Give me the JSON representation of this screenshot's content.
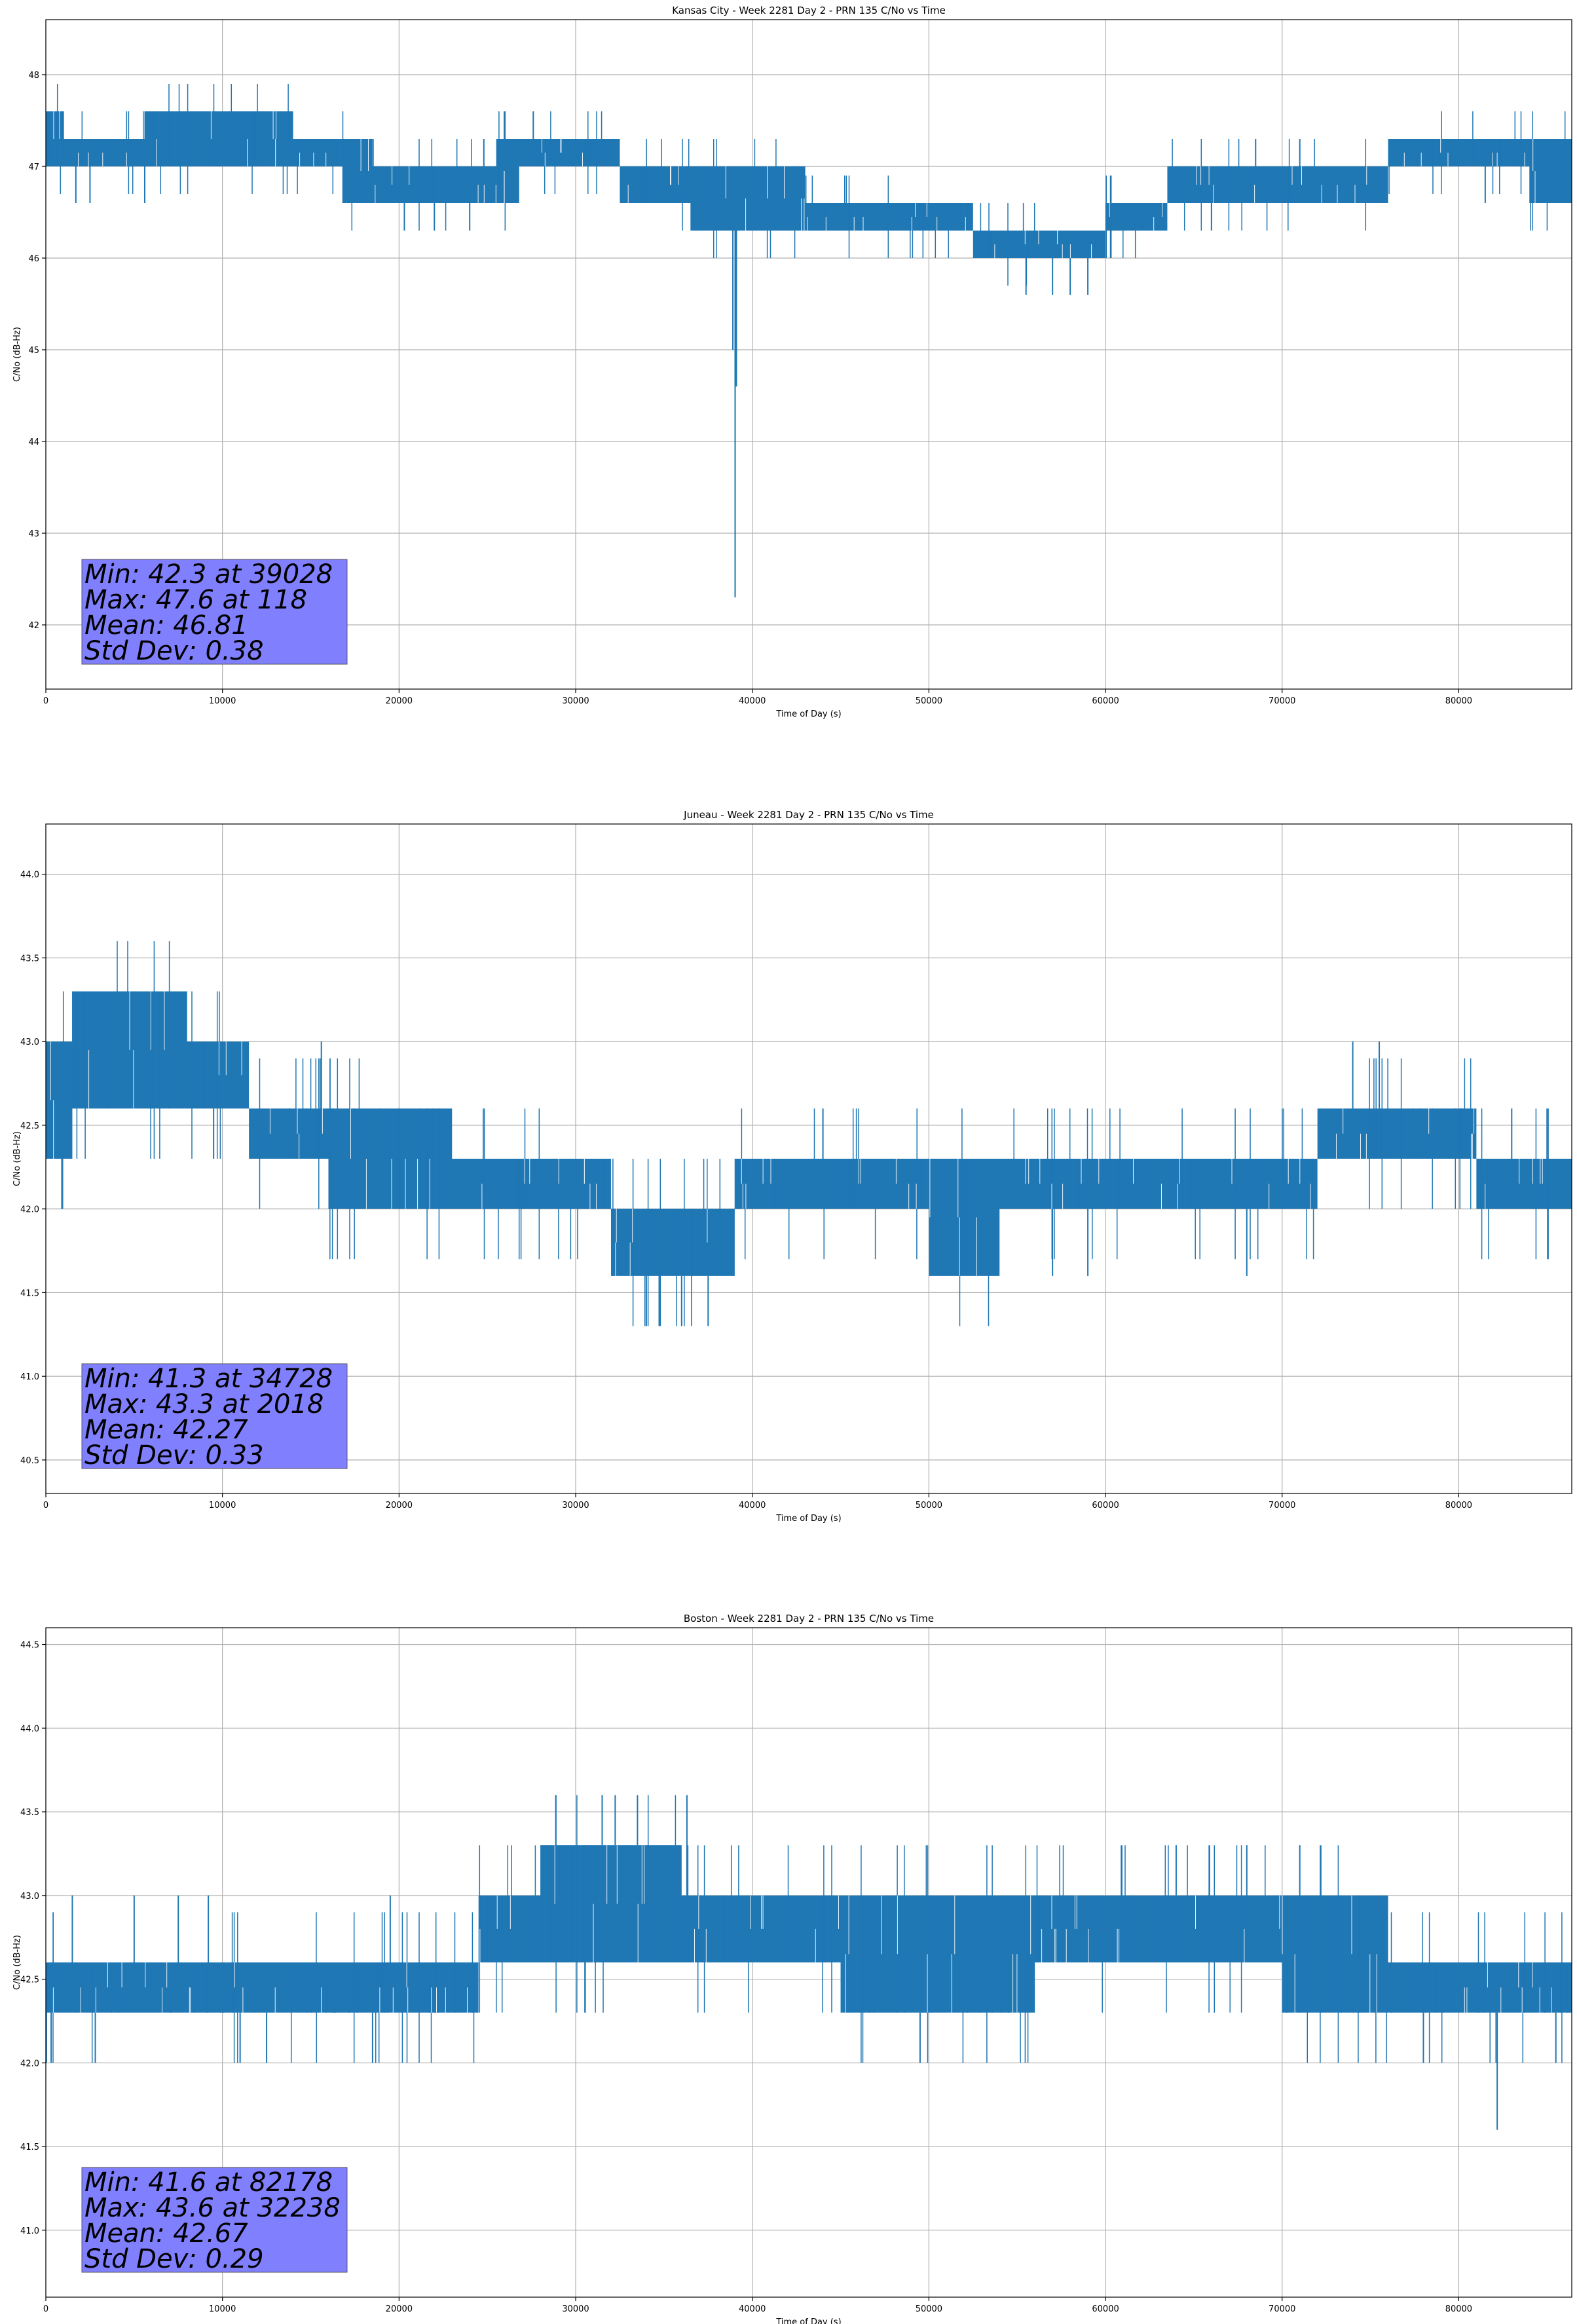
{
  "colors": {
    "series": "#1f77b4",
    "stats_box": "#8080ff",
    "grid": "#b0b0b0"
  },
  "chart_data": [
    {
      "type": "line",
      "title": "Kansas City - Week 2281 Day 2 - PRN 135 C/No vs Time",
      "xlabel": "Time of Day (s)",
      "ylabel": "C/No (dB-Hz)",
      "xlim": [
        0,
        86400
      ],
      "ylim": [
        41.3,
        48.6
      ],
      "xticks": [
        0,
        10000,
        20000,
        30000,
        40000,
        50000,
        60000,
        70000,
        80000
      ],
      "xtick_labels": [
        "0",
        "10000",
        "20000",
        "30000",
        "40000",
        "50000",
        "60000",
        "70000",
        "80000"
      ],
      "yticks": [
        42,
        43,
        44,
        45,
        46,
        47,
        48
      ],
      "ytick_labels": [
        "42",
        "43",
        "44",
        "45",
        "46",
        "47",
        "48"
      ],
      "grid": true,
      "stats": [
        "Min: 42.3 at 39028",
        "Max: 47.6 at 118",
        "Mean: 46.81",
        "Std Dev: 0.38"
      ],
      "series": [
        {
          "values_note": "C/No band approximated as low/high envelope segments",
          "segments": [
            {
              "x0": 0,
              "x1": 1000,
              "low": 47.0,
              "high": 47.6
            },
            {
              "x0": 1000,
              "x1": 5500,
              "low": 47.0,
              "high": 47.3
            },
            {
              "x0": 5500,
              "x1": 8000,
              "low": 47.0,
              "high": 47.6
            },
            {
              "x0": 8000,
              "x1": 14000,
              "low": 47.0,
              "high": 47.6
            },
            {
              "x0": 14000,
              "x1": 16800,
              "low": 47.0,
              "high": 47.3
            },
            {
              "x0": 16800,
              "x1": 18500,
              "low": 46.6,
              "high": 47.3
            },
            {
              "x0": 18500,
              "x1": 25500,
              "low": 46.6,
              "high": 47.0
            },
            {
              "x0": 25500,
              "x1": 26800,
              "low": 46.6,
              "high": 47.3
            },
            {
              "x0": 26800,
              "x1": 32500,
              "low": 47.0,
              "high": 47.3
            },
            {
              "x0": 32500,
              "x1": 36500,
              "low": 46.6,
              "high": 47.0
            },
            {
              "x0": 36500,
              "x1": 43000,
              "low": 46.3,
              "high": 47.0
            },
            {
              "x0": 43000,
              "x1": 52500,
              "low": 46.3,
              "high": 46.6
            },
            {
              "x0": 52500,
              "x1": 60000,
              "low": 46.0,
              "high": 46.3
            },
            {
              "x0": 60000,
              "x1": 63500,
              "low": 46.3,
              "high": 46.6
            },
            {
              "x0": 63500,
              "x1": 68000,
              "low": 46.6,
              "high": 47.0
            },
            {
              "x0": 68000,
              "x1": 76000,
              "low": 46.6,
              "high": 47.0
            },
            {
              "x0": 76000,
              "x1": 84000,
              "low": 47.0,
              "high": 47.3
            },
            {
              "x0": 84000,
              "x1": 86400,
              "low": 46.6,
              "high": 47.3
            }
          ],
          "spikes": [
            {
              "x": 118,
              "y": 47.6
            },
            {
              "x": 1700,
              "y": 46.6
            },
            {
              "x": 2500,
              "y": 46.6
            },
            {
              "x": 5600,
              "y": 46.6
            },
            {
              "x": 20300,
              "y": 46.3
            },
            {
              "x": 22000,
              "y": 46.3
            },
            {
              "x": 24000,
              "y": 46.3
            },
            {
              "x": 27600,
              "y": 47.6
            },
            {
              "x": 24800,
              "y": 47.3
            },
            {
              "x": 36800,
              "y": 46.3
            },
            {
              "x": 38900,
              "y": 45.0
            },
            {
              "x": 39028,
              "y": 42.3
            },
            {
              "x": 39100,
              "y": 44.6
            },
            {
              "x": 55500,
              "y": 45.6
            },
            {
              "x": 57000,
              "y": 45.6
            },
            {
              "x": 58000,
              "y": 45.6
            },
            {
              "x": 59000,
              "y": 45.6
            },
            {
              "x": 66000,
              "y": 46.3
            },
            {
              "x": 68500,
              "y": 47.3
            },
            {
              "x": 71000,
              "y": 47.3
            },
            {
              "x": 81500,
              "y": 46.6
            }
          ]
        }
      ]
    },
    {
      "type": "line",
      "title": "Juneau - Week 2281 Day 2 - PRN 135 C/No vs Time",
      "xlabel": "Time of Day (s)",
      "ylabel": "C/No (dB-Hz)",
      "xlim": [
        0,
        86400
      ],
      "ylim": [
        40.3,
        44.3
      ],
      "xticks": [
        0,
        10000,
        20000,
        30000,
        40000,
        50000,
        60000,
        70000,
        80000
      ],
      "xtick_labels": [
        "0",
        "10000",
        "20000",
        "30000",
        "40000",
        "50000",
        "60000",
        "70000",
        "80000"
      ],
      "yticks": [
        40.5,
        41.0,
        41.5,
        42.0,
        42.5,
        43.0,
        43.5,
        44.0
      ],
      "ytick_labels": [
        "40.5",
        "41.0",
        "41.5",
        "42.0",
        "42.5",
        "43.0",
        "43.5",
        "44.0"
      ],
      "grid": true,
      "stats": [
        "Min: 41.3 at 34728",
        "Max: 43.3 at 2018",
        "Mean: 42.27",
        "Std Dev: 0.33"
      ],
      "series": [
        {
          "values_note": "C/No band approximated as low/high envelope segments",
          "segments": [
            {
              "x0": 0,
              "x1": 1500,
              "low": 42.3,
              "high": 43.0
            },
            {
              "x0": 1500,
              "x1": 8000,
              "low": 42.6,
              "high": 43.3
            },
            {
              "x0": 8000,
              "x1": 11500,
              "low": 42.6,
              "high": 43.0
            },
            {
              "x0": 11500,
              "x1": 16000,
              "low": 42.3,
              "high": 42.6
            },
            {
              "x0": 16000,
              "x1": 23000,
              "low": 42.0,
              "high": 42.6
            },
            {
              "x0": 23000,
              "x1": 32000,
              "low": 42.0,
              "high": 42.3
            },
            {
              "x0": 32000,
              "x1": 39000,
              "low": 41.6,
              "high": 42.0
            },
            {
              "x0": 39000,
              "x1": 50000,
              "low": 42.0,
              "high": 42.3
            },
            {
              "x0": 50000,
              "x1": 54000,
              "low": 41.6,
              "high": 42.3
            },
            {
              "x0": 54000,
              "x1": 66000,
              "low": 42.0,
              "high": 42.3
            },
            {
              "x0": 66000,
              "x1": 72000,
              "low": 42.0,
              "high": 42.3
            },
            {
              "x0": 72000,
              "x1": 81000,
              "low": 42.3,
              "high": 42.6
            },
            {
              "x0": 81000,
              "x1": 86400,
              "low": 42.0,
              "high": 42.3
            }
          ],
          "spikes": [
            {
              "x": 300,
              "y": 42.3
            },
            {
              "x": 1200,
              "y": 42.3
            },
            {
              "x": 2018,
              "y": 43.3
            },
            {
              "x": 3500,
              "y": 43.3
            },
            {
              "x": 6000,
              "y": 43.3
            },
            {
              "x": 7500,
              "y": 43.3
            },
            {
              "x": 9500,
              "y": 42.3
            },
            {
              "x": 15600,
              "y": 43.0
            },
            {
              "x": 34000,
              "y": 41.3
            },
            {
              "x": 34728,
              "y": 41.3
            },
            {
              "x": 36000,
              "y": 41.3
            },
            {
              "x": 37500,
              "y": 41.3
            },
            {
              "x": 44000,
              "y": 42.6
            },
            {
              "x": 52000,
              "y": 41.6
            },
            {
              "x": 57000,
              "y": 41.6
            },
            {
              "x": 59000,
              "y": 41.6
            },
            {
              "x": 68000,
              "y": 41.6
            },
            {
              "x": 74000,
              "y": 43.0
            },
            {
              "x": 75500,
              "y": 43.0
            },
            {
              "x": 83000,
              "y": 42.6
            },
            {
              "x": 85000,
              "y": 42.6
            }
          ]
        }
      ]
    },
    {
      "type": "line",
      "title": "Boston - Week 2281 Day 2 - PRN 135 C/No vs Time",
      "xlabel": "Time of Day (s)",
      "ylabel": "C/No (dB-Hz)",
      "xlim": [
        0,
        86400
      ],
      "ylim": [
        40.6,
        44.6
      ],
      "xticks": [
        0,
        10000,
        20000,
        30000,
        40000,
        50000,
        60000,
        70000,
        80000
      ],
      "xtick_labels": [
        "0",
        "10000",
        "20000",
        "30000",
        "40000",
        "50000",
        "60000",
        "70000",
        "80000"
      ],
      "yticks": [
        41.0,
        41.5,
        42.0,
        42.5,
        43.0,
        43.5,
        44.0,
        44.5
      ],
      "ytick_labels": [
        "41.0",
        "41.5",
        "42.0",
        "42.5",
        "43.0",
        "43.5",
        "44.0",
        "44.5"
      ],
      "grid": true,
      "stats": [
        "Min: 41.6 at 82178",
        "Max: 43.6 at 32238",
        "Mean: 42.67",
        "Std Dev: 0.29"
      ],
      "series": [
        {
          "values_note": "C/No band approximated as low/high envelope segments",
          "segments": [
            {
              "x0": 0,
              "x1": 24500,
              "low": 42.3,
              "high": 42.6
            },
            {
              "x0": 24500,
              "x1": 28000,
              "low": 42.6,
              "high": 43.0
            },
            {
              "x0": 28000,
              "x1": 36000,
              "low": 42.6,
              "high": 43.3
            },
            {
              "x0": 36000,
              "x1": 45000,
              "low": 42.6,
              "high": 43.0
            },
            {
              "x0": 45000,
              "x1": 56000,
              "low": 42.3,
              "high": 43.0
            },
            {
              "x0": 56000,
              "x1": 70000,
              "low": 42.6,
              "high": 43.0
            },
            {
              "x0": 70000,
              "x1": 76000,
              "low": 42.3,
              "high": 43.0
            },
            {
              "x0": 76000,
              "x1": 86400,
              "low": 42.3,
              "high": 42.6
            }
          ],
          "spikes": [
            {
              "x": 300,
              "y": 42.0
            },
            {
              "x": 1500,
              "y": 43.0
            },
            {
              "x": 2800,
              "y": 42.0
            },
            {
              "x": 5000,
              "y": 43.0
            },
            {
              "x": 7500,
              "y": 43.0
            },
            {
              "x": 9200,
              "y": 43.0
            },
            {
              "x": 11000,
              "y": 42.0
            },
            {
              "x": 12500,
              "y": 42.0
            },
            {
              "x": 18500,
              "y": 42.0
            },
            {
              "x": 19500,
              "y": 43.0
            },
            {
              "x": 31500,
              "y": 43.6
            },
            {
              "x": 32238,
              "y": 43.6
            },
            {
              "x": 33500,
              "y": 43.6
            },
            {
              "x": 36300,
              "y": 43.6
            },
            {
              "x": 49500,
              "y": 42.0
            },
            {
              "x": 53000,
              "y": 42.3
            },
            {
              "x": 64000,
              "y": 43.3
            },
            {
              "x": 68000,
              "y": 43.3
            },
            {
              "x": 71000,
              "y": 43.3
            },
            {
              "x": 78000,
              "y": 42.0
            },
            {
              "x": 82178,
              "y": 41.6
            },
            {
              "x": 85500,
              "y": 42.0
            }
          ]
        }
      ]
    }
  ]
}
